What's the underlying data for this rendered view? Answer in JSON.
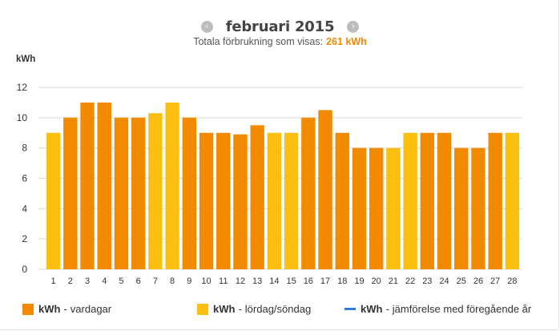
{
  "header": {
    "prev_icon": "‹",
    "next_icon": "›",
    "title": "februari 2015",
    "subtitle_label": "Totala förbrukning som visas:",
    "subtitle_value": "261 kWh"
  },
  "colors": {
    "weekday": "#f28a00",
    "weekend": "#fbbf10",
    "comparison": "#2a7fe0",
    "grid": "#d9d9d9"
  },
  "chart_data": {
    "type": "bar",
    "ylabel": "kWh",
    "ylim": [
      0,
      12
    ],
    "yticks": [
      0,
      2,
      4,
      6,
      8,
      10,
      12
    ],
    "categories": [
      "1",
      "2",
      "3",
      "4",
      "5",
      "6",
      "7",
      "8",
      "9",
      "10",
      "11",
      "12",
      "13",
      "14",
      "15",
      "16",
      "17",
      "18",
      "19",
      "20",
      "21",
      "22",
      "23",
      "24",
      "25",
      "26",
      "27",
      "28"
    ],
    "values": [
      9,
      10,
      11,
      11,
      10,
      10,
      10.3,
      11,
      10,
      9,
      9,
      8.9,
      9.5,
      9,
      9,
      10,
      10.5,
      9,
      8,
      8,
      8,
      9,
      9,
      9,
      8,
      8,
      9,
      9
    ],
    "day_type": [
      "weekend",
      "weekday",
      "weekday",
      "weekday",
      "weekday",
      "weekday",
      "weekend",
      "weekend",
      "weekday",
      "weekday",
      "weekday",
      "weekday",
      "weekday",
      "weekend",
      "weekend",
      "weekday",
      "weekday",
      "weekday",
      "weekday",
      "weekday",
      "weekend",
      "weekend",
      "weekday",
      "weekday",
      "weekday",
      "weekday",
      "weekday",
      "weekend"
    ],
    "grid": true
  },
  "legend": {
    "weekday": {
      "bold": "kWh",
      "text": "vardagar"
    },
    "weekend": {
      "bold": "kWh",
      "text": "lördag/söndag"
    },
    "comparison": {
      "bold": "kWh",
      "text": "jämförelse med föregående år"
    },
    "separator": "-"
  }
}
